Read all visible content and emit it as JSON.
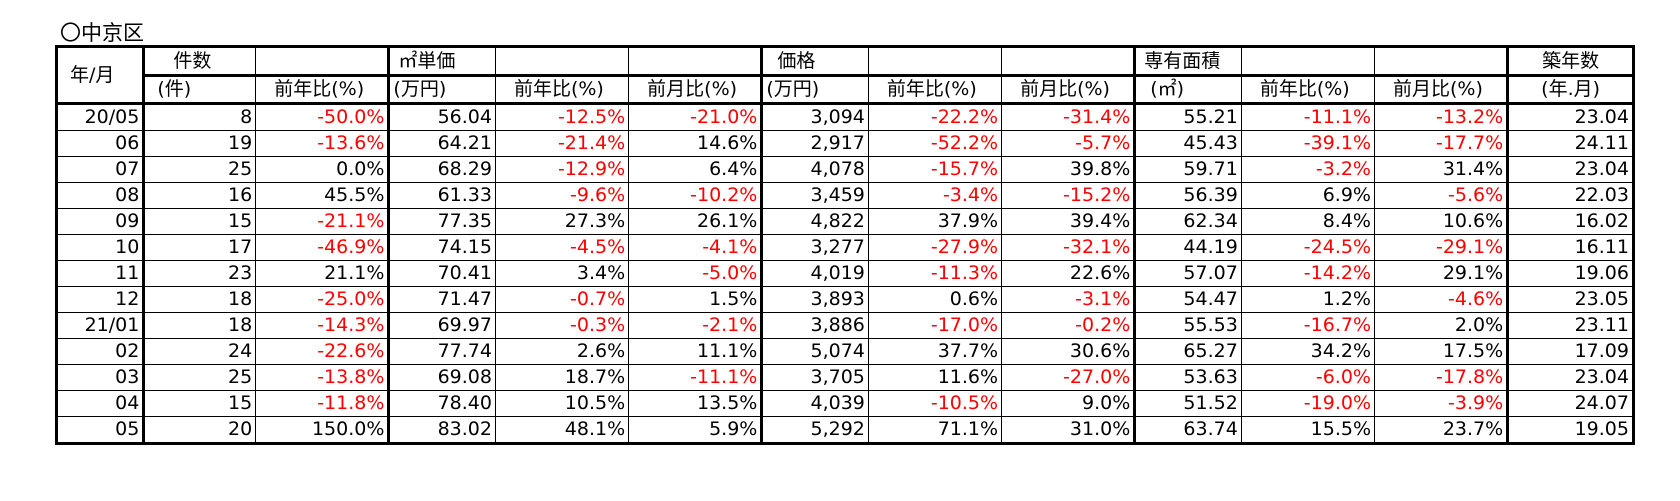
{
  "section_title": "〇中京区",
  "header": {
    "ym": "年/月",
    "count": "件数",
    "count_unit": "(件)",
    "sqm_price": "㎡単価",
    "sqm_price_unit": "(万円)",
    "price": "価格",
    "price_unit": "(万円)",
    "area": "専有面積",
    "area_unit": "(㎡)",
    "age": "築年数",
    "age_unit": "(年.月)",
    "yoy": "前年比(%)",
    "mom": "前月比(%)"
  },
  "rows": [
    {
      "ym": "20/05",
      "count": "8",
      "count_yoy": "-50.0%",
      "sqm": "56.04",
      "sqm_yoy": "-12.5%",
      "sqm_mom": "-21.0%",
      "price": "3,094",
      "price_yoy": "-22.2%",
      "price_mom": "-31.4%",
      "area": "55.21",
      "area_yoy": "-11.1%",
      "area_mom": "-13.2%",
      "age": "23.04"
    },
    {
      "ym": "06",
      "count": "19",
      "count_yoy": "-13.6%",
      "sqm": "64.21",
      "sqm_yoy": "-21.4%",
      "sqm_mom": "14.6%",
      "price": "2,917",
      "price_yoy": "-52.2%",
      "price_mom": "-5.7%",
      "area": "45.43",
      "area_yoy": "-39.1%",
      "area_mom": "-17.7%",
      "age": "24.11"
    },
    {
      "ym": "07",
      "count": "25",
      "count_yoy": "0.0%",
      "sqm": "68.29",
      "sqm_yoy": "-12.9%",
      "sqm_mom": "6.4%",
      "price": "4,078",
      "price_yoy": "-15.7%",
      "price_mom": "39.8%",
      "area": "59.71",
      "area_yoy": "-3.2%",
      "area_mom": "31.4%",
      "age": "23.04"
    },
    {
      "ym": "08",
      "count": "16",
      "count_yoy": "45.5%",
      "sqm": "61.33",
      "sqm_yoy": "-9.6%",
      "sqm_mom": "-10.2%",
      "price": "3,459",
      "price_yoy": "-3.4%",
      "price_mom": "-15.2%",
      "area": "56.39",
      "area_yoy": "6.9%",
      "area_mom": "-5.6%",
      "age": "22.03"
    },
    {
      "ym": "09",
      "count": "15",
      "count_yoy": "-21.1%",
      "sqm": "77.35",
      "sqm_yoy": "27.3%",
      "sqm_mom": "26.1%",
      "price": "4,822",
      "price_yoy": "37.9%",
      "price_mom": "39.4%",
      "area": "62.34",
      "area_yoy": "8.4%",
      "area_mom": "10.6%",
      "age": "16.02"
    },
    {
      "ym": "10",
      "count": "17",
      "count_yoy": "-46.9%",
      "sqm": "74.15",
      "sqm_yoy": "-4.5%",
      "sqm_mom": "-4.1%",
      "price": "3,277",
      "price_yoy": "-27.9%",
      "price_mom": "-32.1%",
      "area": "44.19",
      "area_yoy": "-24.5%",
      "area_mom": "-29.1%",
      "age": "16.11"
    },
    {
      "ym": "11",
      "count": "23",
      "count_yoy": "21.1%",
      "sqm": "70.41",
      "sqm_yoy": "3.4%",
      "sqm_mom": "-5.0%",
      "price": "4,019",
      "price_yoy": "-11.3%",
      "price_mom": "22.6%",
      "area": "57.07",
      "area_yoy": "-14.2%",
      "area_mom": "29.1%",
      "age": "19.06"
    },
    {
      "ym": "12",
      "count": "18",
      "count_yoy": "-25.0%",
      "sqm": "71.47",
      "sqm_yoy": "-0.7%",
      "sqm_mom": "1.5%",
      "price": "3,893",
      "price_yoy": "0.6%",
      "price_mom": "-3.1%",
      "area": "54.47",
      "area_yoy": "1.2%",
      "area_mom": "-4.6%",
      "age": "23.05"
    },
    {
      "ym": "21/01",
      "count": "18",
      "count_yoy": "-14.3%",
      "sqm": "69.97",
      "sqm_yoy": "-0.3%",
      "sqm_mom": "-2.1%",
      "price": "3,886",
      "price_yoy": "-17.0%",
      "price_mom": "-0.2%",
      "area": "55.53",
      "area_yoy": "-16.7%",
      "area_mom": "2.0%",
      "age": "23.11"
    },
    {
      "ym": "02",
      "count": "24",
      "count_yoy": "-22.6%",
      "sqm": "77.74",
      "sqm_yoy": "2.6%",
      "sqm_mom": "11.1%",
      "price": "5,074",
      "price_yoy": "37.7%",
      "price_mom": "30.6%",
      "area": "65.27",
      "area_yoy": "34.2%",
      "area_mom": "17.5%",
      "age": "17.09"
    },
    {
      "ym": "03",
      "count": "25",
      "count_yoy": "-13.8%",
      "sqm": "69.08",
      "sqm_yoy": "18.7%",
      "sqm_mom": "-11.1%",
      "price": "3,705",
      "price_yoy": "11.6%",
      "price_mom": "-27.0%",
      "area": "53.63",
      "area_yoy": "-6.0%",
      "area_mom": "-17.8%",
      "age": "23.04"
    },
    {
      "ym": "04",
      "count": "15",
      "count_yoy": "-11.8%",
      "sqm": "78.40",
      "sqm_yoy": "10.5%",
      "sqm_mom": "13.5%",
      "price": "4,039",
      "price_yoy": "-10.5%",
      "price_mom": "9.0%",
      "area": "51.52",
      "area_yoy": "-19.0%",
      "area_mom": "-3.9%",
      "age": "24.07"
    },
    {
      "ym": "05",
      "count": "20",
      "count_yoy": "150.0%",
      "sqm": "83.02",
      "sqm_yoy": "48.1%",
      "sqm_mom": "5.9%",
      "price": "5,292",
      "price_yoy": "71.1%",
      "price_mom": "31.0%",
      "area": "63.74",
      "area_yoy": "15.5%",
      "area_mom": "23.7%",
      "age": "19.05"
    }
  ],
  "colors": {
    "negative": "#ff0000",
    "text": "#000000",
    "border": "#000000"
  }
}
